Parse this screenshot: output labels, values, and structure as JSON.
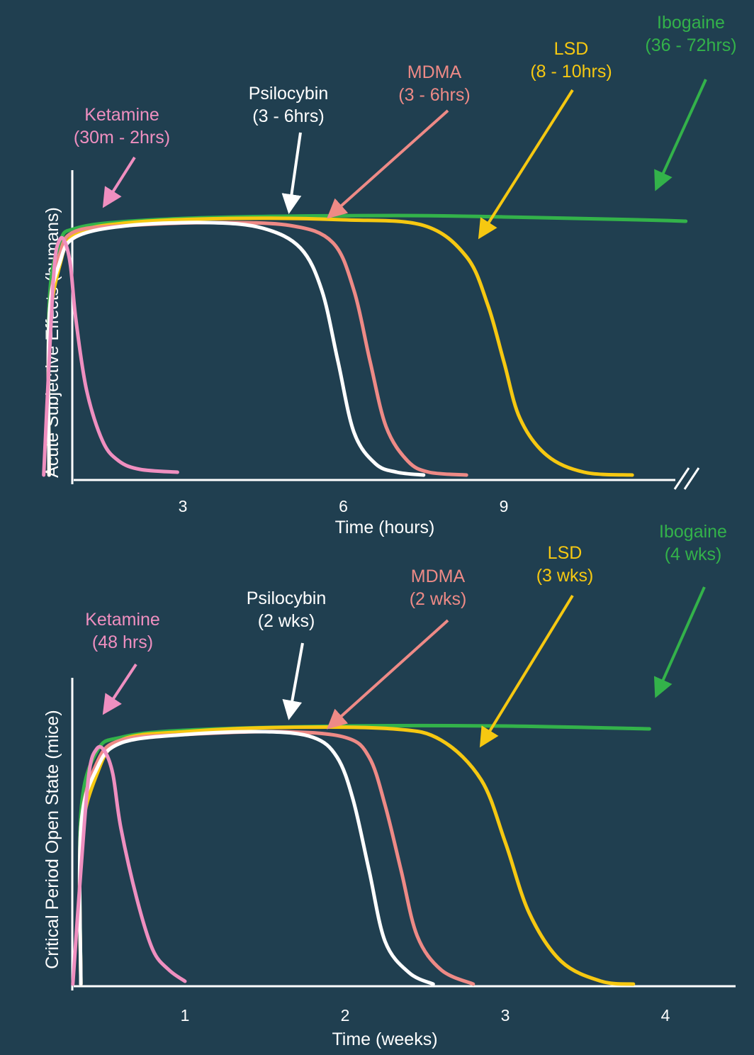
{
  "colors": {
    "background": "#203f50",
    "axis": "#ffffff",
    "Ketamine": "#ef8fc0",
    "Psilocybin": "#ffffff",
    "MDMA": "#ee8a86",
    "LSD": "#f6c811",
    "Ibogaine": "#33b24a"
  },
  "chart_data": [
    {
      "type": "line",
      "ylabel": "Acute Subjective Effects (humans)",
      "xlabel": "Time (hours)",
      "x_ticks": [
        "3",
        "6",
        "9"
      ],
      "axis_break": true,
      "grid": false,
      "series": [
        {
          "name": "Ketamine",
          "duration_label": "(30m - 2hrs)",
          "points": [
            [
              0.4,
              0
            ],
            [
              0.5,
              0.4
            ],
            [
              0.6,
              0.74
            ],
            [
              0.7,
              0.83
            ],
            [
              0.8,
              0.82
            ],
            [
              0.9,
              0.74
            ],
            [
              1.0,
              0.55
            ],
            [
              1.2,
              0.3
            ],
            [
              1.5,
              0.12
            ],
            [
              1.8,
              0.05
            ],
            [
              2.2,
              0.02
            ],
            [
              2.9,
              0.01
            ]
          ]
        },
        {
          "name": "Psilocybin",
          "duration_label": "(3 - 6hrs)",
          "points": [
            [
              0.5,
              0
            ],
            [
              0.5,
              0.55
            ],
            [
              0.7,
              0.75
            ],
            [
              1.0,
              0.84
            ],
            [
              2.0,
              0.88
            ],
            [
              3.5,
              0.89
            ],
            [
              4.5,
              0.87
            ],
            [
              5.2,
              0.8
            ],
            [
              5.6,
              0.65
            ],
            [
              5.9,
              0.4
            ],
            [
              6.2,
              0.15
            ],
            [
              6.6,
              0.04
            ],
            [
              7.0,
              0.01
            ],
            [
              7.5,
              0
            ]
          ]
        },
        {
          "name": "MDMA",
          "duration_label": "(3 - 6hrs)",
          "points": [
            [
              0.5,
              0
            ],
            [
              0.5,
              0.55
            ],
            [
              0.7,
              0.78
            ],
            [
              1.0,
              0.86
            ],
            [
              2.0,
              0.88
            ],
            [
              3.5,
              0.89
            ],
            [
              5.0,
              0.88
            ],
            [
              5.8,
              0.82
            ],
            [
              6.2,
              0.65
            ],
            [
              6.5,
              0.4
            ],
            [
              6.8,
              0.17
            ],
            [
              7.2,
              0.05
            ],
            [
              7.6,
              0.01
            ],
            [
              8.3,
              0
            ]
          ]
        },
        {
          "name": "LSD",
          "duration_label": "(8 - 10hrs)",
          "points": [
            [
              0.5,
              0
            ],
            [
              0.5,
              0.5
            ],
            [
              0.7,
              0.74
            ],
            [
              1.0,
              0.85
            ],
            [
              2.0,
              0.89
            ],
            [
              4.0,
              0.905
            ],
            [
              6.0,
              0.9
            ],
            [
              7.5,
              0.88
            ],
            [
              8.3,
              0.77
            ],
            [
              8.7,
              0.6
            ],
            [
              9.0,
              0.4
            ],
            [
              9.3,
              0.2
            ],
            [
              9.8,
              0.07
            ],
            [
              10.5,
              0.01
            ],
            [
              11.4,
              0
            ]
          ]
        },
        {
          "name": "Ibogaine",
          "duration_label": "(36 - 72hrs)",
          "points": [
            [
              0.5,
              0
            ],
            [
              0.5,
              0.6
            ],
            [
              0.7,
              0.82
            ],
            [
              1.0,
              0.87
            ],
            [
              2.0,
              0.895
            ],
            [
              4.0,
              0.91
            ],
            [
              7.0,
              0.915
            ],
            [
              9.0,
              0.91
            ],
            [
              11.5,
              0.9
            ],
            [
              12.4,
              0.895
            ]
          ]
        }
      ]
    },
    {
      "type": "line",
      "ylabel": "Critical Period Open State (mice)",
      "xlabel": "Time (weeks)",
      "x_ticks": [
        "1",
        "2",
        "3",
        "4"
      ],
      "axis_break": false,
      "grid": false,
      "series": [
        {
          "name": "Ketamine",
          "duration_label": "(48 hrs)",
          "points": [
            [
              0.3,
              0
            ],
            [
              0.35,
              0.4
            ],
            [
              0.4,
              0.74
            ],
            [
              0.45,
              0.83
            ],
            [
              0.5,
              0.82
            ],
            [
              0.55,
              0.74
            ],
            [
              0.6,
              0.55
            ],
            [
              0.7,
              0.3
            ],
            [
              0.8,
              0.12
            ],
            [
              0.9,
              0.05
            ],
            [
              1.0,
              0.01
            ]
          ]
        },
        {
          "name": "Psilocybin",
          "duration_label": "(2 wks)",
          "points": [
            [
              0.35,
              0
            ],
            [
              0.35,
              0.55
            ],
            [
              0.45,
              0.76
            ],
            [
              0.6,
              0.85
            ],
            [
              1.0,
              0.88
            ],
            [
              1.5,
              0.89
            ],
            [
              1.8,
              0.87
            ],
            [
              1.95,
              0.8
            ],
            [
              2.05,
              0.65
            ],
            [
              2.15,
              0.4
            ],
            [
              2.25,
              0.15
            ],
            [
              2.4,
              0.04
            ],
            [
              2.55,
              0
            ]
          ]
        },
        {
          "name": "MDMA",
          "duration_label": "(2 wks)",
          "points": [
            [
              0.35,
              0
            ],
            [
              0.35,
              0.55
            ],
            [
              0.45,
              0.78
            ],
            [
              0.6,
              0.86
            ],
            [
              1.0,
              0.88
            ],
            [
              1.6,
              0.89
            ],
            [
              2.0,
              0.87
            ],
            [
              2.15,
              0.8
            ],
            [
              2.25,
              0.63
            ],
            [
              2.35,
              0.4
            ],
            [
              2.45,
              0.17
            ],
            [
              2.6,
              0.05
            ],
            [
              2.8,
              0
            ]
          ]
        },
        {
          "name": "LSD",
          "duration_label": "(3 wks)",
          "points": [
            [
              0.35,
              0
            ],
            [
              0.35,
              0.5
            ],
            [
              0.45,
              0.74
            ],
            [
              0.6,
              0.86
            ],
            [
              1.0,
              0.89
            ],
            [
              1.6,
              0.905
            ],
            [
              2.3,
              0.9
            ],
            [
              2.6,
              0.86
            ],
            [
              2.85,
              0.72
            ],
            [
              3.0,
              0.5
            ],
            [
              3.15,
              0.25
            ],
            [
              3.35,
              0.08
            ],
            [
              3.6,
              0.01
            ],
            [
              3.8,
              0
            ]
          ]
        },
        {
          "name": "Ibogaine",
          "duration_label": "(4 wks)",
          "points": [
            [
              0.35,
              0
            ],
            [
              0.35,
              0.6
            ],
            [
              0.45,
              0.82
            ],
            [
              0.6,
              0.87
            ],
            [
              1.0,
              0.895
            ],
            [
              2.0,
              0.91
            ],
            [
              3.0,
              0.91
            ],
            [
              3.9,
              0.9
            ]
          ]
        }
      ]
    }
  ]
}
